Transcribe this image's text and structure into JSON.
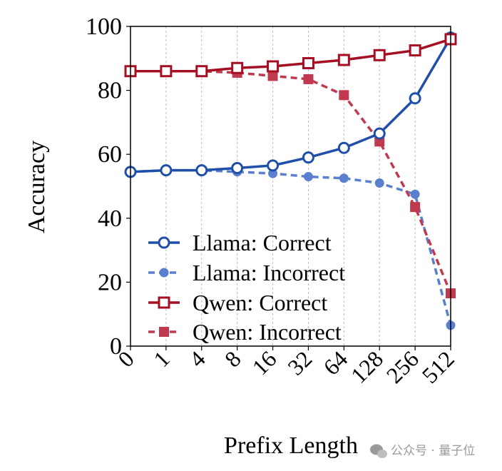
{
  "chart_data": {
    "type": "line",
    "xlabel": "Prefix Length",
    "ylabel": "Accuracy",
    "categories": [
      "0",
      "1",
      "4",
      "8",
      "16",
      "32",
      "64",
      "128",
      "256",
      "512"
    ],
    "ylim": [
      0,
      100
    ],
    "yticks": [
      "0",
      "20",
      "40",
      "60",
      "80",
      "100"
    ],
    "grid": "vertical dotted",
    "legend_position": "lower-left",
    "series": [
      {
        "name": "Llama: Correct",
        "color": "#1f4fa8",
        "style": "solid",
        "marker": "open-circle",
        "values": [
          54.5,
          55.0,
          55.0,
          55.7,
          56.5,
          59.0,
          62.0,
          66.5,
          77.5,
          96.5
        ]
      },
      {
        "name": "Llama: Incorrect",
        "color": "#5b7fcf",
        "style": "dashed",
        "marker": "filled-circle",
        "values": [
          54.5,
          55.0,
          55.0,
          54.5,
          54.0,
          53.0,
          52.5,
          51.0,
          47.5,
          6.5
        ]
      },
      {
        "name": "Qwen: Correct",
        "color": "#a50f23",
        "style": "solid",
        "marker": "open-square",
        "values": [
          86.0,
          86.0,
          86.0,
          87.0,
          87.5,
          88.5,
          89.5,
          91.0,
          92.5,
          96.0
        ]
      },
      {
        "name": "Qwen: Incorrect",
        "color": "#c0394f",
        "style": "dashed",
        "marker": "filled-square",
        "values": [
          86.0,
          86.0,
          86.0,
          85.5,
          84.5,
          83.5,
          78.5,
          64.0,
          43.5,
          16.5
        ]
      }
    ]
  },
  "watermark": {
    "text": "公众号 · 量子位",
    "icon": "wechat-icon"
  }
}
